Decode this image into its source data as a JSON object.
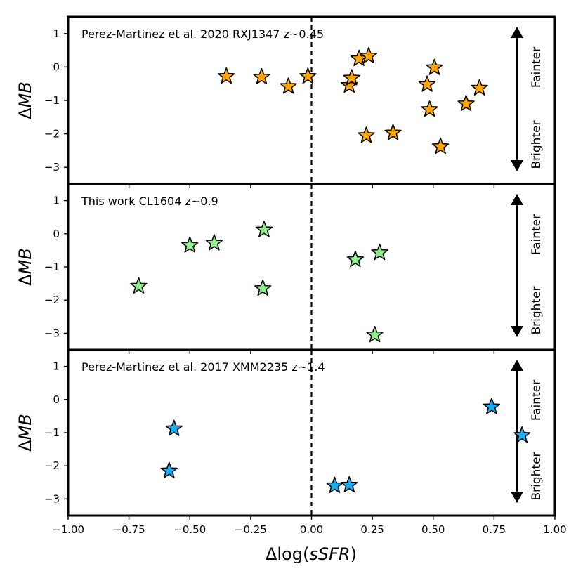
{
  "chart_data": {
    "type": "scatter",
    "xlabel_prefix": "Δlog(",
    "xlabel_var": "sSFR",
    "xlabel_suffix": ")",
    "ylabel_prefix": "Δ",
    "ylabel_var": "MB",
    "xlim": [
      -1.0,
      1.0
    ],
    "ylim": [
      -3.5,
      1.5
    ],
    "xticks": [
      -1.0,
      -0.75,
      -0.5,
      -0.25,
      0.0,
      0.25,
      0.5,
      0.75,
      1.0
    ],
    "xtick_labels": [
      "−1.00",
      "−0.75",
      "−0.50",
      "−0.25",
      "0.00",
      "0.25",
      "0.50",
      "0.75",
      "1.00"
    ],
    "yticks": [
      1,
      0,
      -1,
      -2,
      -3
    ],
    "ytick_labels": [
      "1",
      "0",
      "−1",
      "−2",
      "−3"
    ],
    "reference_line_x": 0.0,
    "arrow_labels": {
      "up": "Fainter",
      "down": "Brighter"
    },
    "panels": [
      {
        "title": "Perez-Martinez et al. 2020 RXJ1347 z~0.45",
        "color": "#ffa500",
        "points": [
          {
            "x": -0.35,
            "y": -0.28
          },
          {
            "x": -0.205,
            "y": -0.3
          },
          {
            "x": -0.095,
            "y": -0.58
          },
          {
            "x": -0.015,
            "y": -0.28
          },
          {
            "x": 0.155,
            "y": -0.55
          },
          {
            "x": 0.165,
            "y": -0.33
          },
          {
            "x": 0.195,
            "y": 0.25
          },
          {
            "x": 0.235,
            "y": 0.33
          },
          {
            "x": 0.225,
            "y": -2.05
          },
          {
            "x": 0.335,
            "y": -1.97
          },
          {
            "x": 0.475,
            "y": -0.52
          },
          {
            "x": 0.505,
            "y": -0.02
          },
          {
            "x": 0.485,
            "y": -1.27
          },
          {
            "x": 0.53,
            "y": -2.38
          },
          {
            "x": 0.635,
            "y": -1.1
          },
          {
            "x": 0.69,
            "y": -0.63
          }
        ]
      },
      {
        "title": "This work CL1604 z~0.9",
        "color": "#90ee90",
        "points": [
          {
            "x": -0.71,
            "y": -1.58
          },
          {
            "x": -0.5,
            "y": -0.35
          },
          {
            "x": -0.4,
            "y": -0.28
          },
          {
            "x": -0.195,
            "y": 0.12
          },
          {
            "x": -0.2,
            "y": -1.65
          },
          {
            "x": 0.18,
            "y": -0.78
          },
          {
            "x": 0.28,
            "y": -0.57
          },
          {
            "x": 0.26,
            "y": -3.05
          }
        ]
      },
      {
        "title": "Perez-Martinez et al. 2017 XMM2235 z~1.4",
        "color": "#1aaef0",
        "points": [
          {
            "x": -0.565,
            "y": -0.88
          },
          {
            "x": -0.585,
            "y": -2.15
          },
          {
            "x": 0.095,
            "y": -2.6
          },
          {
            "x": 0.155,
            "y": -2.58
          },
          {
            "x": 0.74,
            "y": -0.22
          },
          {
            "x": 0.865,
            "y": -1.08
          }
        ]
      }
    ]
  }
}
